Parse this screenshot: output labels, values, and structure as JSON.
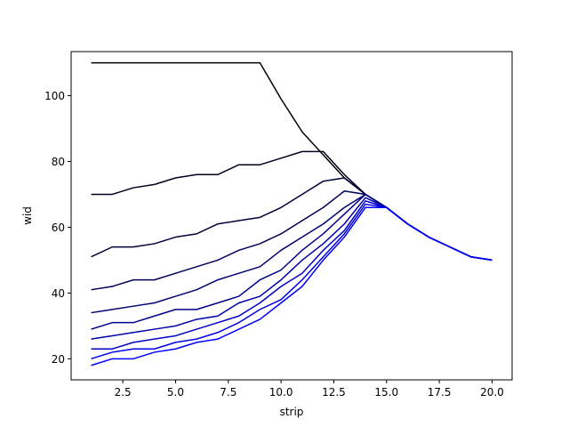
{
  "chart_data": {
    "type": "line",
    "title": "",
    "xlabel": "strip",
    "ylabel": "wid",
    "xlim": [
      0.05,
      20.95
    ],
    "ylim": [
      13.6,
      113.4
    ],
    "grid": false,
    "legend": "none",
    "x_ticks": [
      2.5,
      5.0,
      7.5,
      10.0,
      12.5,
      15.0,
      17.5,
      20.0
    ],
    "x_tick_labels": [
      "2.5",
      "5.0",
      "7.5",
      "10.0",
      "12.5",
      "15.0",
      "17.5",
      "20.0"
    ],
    "y_ticks": [
      20,
      40,
      60,
      80,
      100
    ],
    "y_tick_labels": [
      "20",
      "40",
      "60",
      "80",
      "100"
    ],
    "x": [
      1,
      2,
      3,
      4,
      5,
      6,
      7,
      8,
      9,
      10,
      11,
      12,
      13,
      14,
      15,
      16,
      17,
      18,
      19,
      20
    ],
    "series": [
      {
        "color": "#000000",
        "values": [
          110,
          110,
          110,
          110,
          110,
          110,
          110,
          110,
          110,
          99,
          89,
          82,
          75,
          70,
          66,
          61,
          57,
          54,
          51,
          50
        ]
      },
      {
        "color": "#00001c",
        "values": [
          70,
          70,
          72,
          73,
          75,
          76,
          76,
          79,
          79,
          81,
          83,
          83,
          76,
          70,
          66,
          61,
          57,
          54,
          51,
          50
        ]
      },
      {
        "color": "#000038",
        "values": [
          51,
          54,
          54,
          55,
          57,
          58,
          61,
          62,
          63,
          66,
          70,
          74,
          75,
          70,
          66,
          61,
          57,
          54,
          51,
          50
        ]
      },
      {
        "color": "#000055",
        "values": [
          41,
          42,
          44,
          44,
          46,
          48,
          50,
          53,
          55,
          58,
          62,
          66,
          71,
          70,
          66,
          61,
          57,
          54,
          51,
          50
        ]
      },
      {
        "color": "#000071",
        "values": [
          34,
          35,
          36,
          37,
          39,
          41,
          44,
          46,
          48,
          53,
          57,
          61,
          66,
          70,
          66,
          61,
          57,
          54,
          51,
          50
        ]
      },
      {
        "color": "#00008d",
        "values": [
          29,
          31,
          31,
          33,
          35,
          35,
          37,
          39,
          44,
          47,
          53,
          58,
          64,
          70,
          66,
          61,
          57,
          54,
          51,
          50
        ]
      },
      {
        "color": "#0000aa",
        "values": [
          26,
          27,
          28,
          29,
          30,
          32,
          33,
          37,
          39,
          44,
          50,
          55,
          61,
          69,
          66,
          61,
          57,
          54,
          51,
          50
        ]
      },
      {
        "color": "#0000c6",
        "values": [
          23,
          23,
          25,
          26,
          27,
          29,
          31,
          33,
          37,
          42,
          46,
          53,
          59,
          68,
          66,
          61,
          57,
          54,
          51,
          50
        ]
      },
      {
        "color": "#0000e2",
        "values": [
          20,
          22,
          23,
          23,
          25,
          26,
          28,
          31,
          35,
          38,
          44,
          51,
          58,
          67,
          66,
          61,
          57,
          54,
          51,
          50
        ]
      },
      {
        "color": "#0000ff",
        "values": [
          18,
          20,
          20,
          22,
          23,
          25,
          26,
          29,
          32,
          37,
          42,
          50,
          57,
          66,
          66,
          61,
          57,
          54,
          51,
          50
        ]
      }
    ]
  }
}
